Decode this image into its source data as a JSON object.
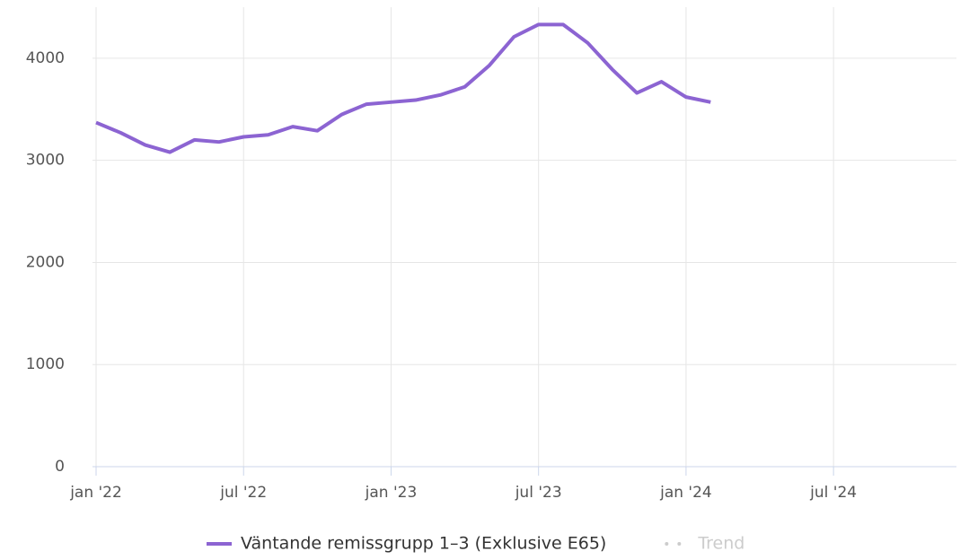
{
  "chart_data": {
    "type": "line",
    "x": [
      "2022-01",
      "2022-02",
      "2022-03",
      "2022-04",
      "2022-05",
      "2022-06",
      "2022-07",
      "2022-08",
      "2022-09",
      "2022-10",
      "2022-11",
      "2022-12",
      "2023-01",
      "2023-02",
      "2023-03",
      "2023-04",
      "2023-05",
      "2023-06",
      "2023-07",
      "2023-08",
      "2023-09",
      "2023-10",
      "2023-11",
      "2023-12",
      "2024-01",
      "2024-02"
    ],
    "series": [
      {
        "name": "Väntande remissgrupp 1–3 (Exklusive E65)",
        "color": "#8c64d2",
        "values": [
          3370,
          3270,
          3150,
          3080,
          3200,
          3180,
          3230,
          3250,
          3330,
          3290,
          3450,
          3550,
          3570,
          3590,
          3640,
          3720,
          3930,
          4210,
          4330,
          4330,
          4150,
          3890,
          3660,
          3770,
          3620,
          3570
        ]
      },
      {
        "name": "Trend",
        "color": "#cccccc",
        "hidden": true,
        "values": [
          null,
          null,
          null,
          null,
          null,
          null,
          null,
          null,
          null,
          null,
          null,
          null,
          null,
          null,
          null,
          null,
          null,
          null,
          null,
          null,
          null,
          null,
          null,
          null,
          null,
          null
        ]
      }
    ],
    "xlim": [
      "2022-01",
      "2024-12"
    ],
    "xticks": [
      {
        "value": "2022-01",
        "label": "jan '22"
      },
      {
        "value": "2022-07",
        "label": "jul '22"
      },
      {
        "value": "2023-01",
        "label": "jan '23"
      },
      {
        "value": "2023-07",
        "label": "jul '23"
      },
      {
        "value": "2024-01",
        "label": "jan '24"
      },
      {
        "value": "2024-07",
        "label": "jul '24"
      }
    ],
    "ylim": [
      0,
      4500
    ],
    "yticks": [
      0,
      1000,
      2000,
      3000,
      4000
    ],
    "grid": true
  }
}
